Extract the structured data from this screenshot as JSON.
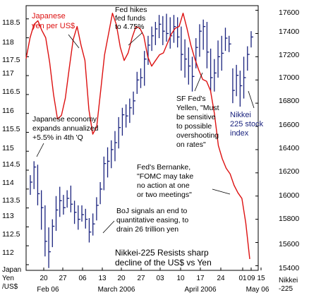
{
  "chart_data": {
    "type": "line",
    "x_ticks": [
      "20",
      "27",
      "06",
      "13",
      "20",
      "27",
      "03",
      "10",
      "17",
      "24",
      "01",
      "09",
      "15"
    ],
    "month_labels": [
      "Feb 06",
      "March 2006",
      "April 2006",
      "May 06"
    ],
    "left_axis": {
      "ylim": [
        111.85,
        118.85
      ],
      "ticks": [
        "118.5",
        "118",
        "117.5",
        "117",
        "116.5",
        "116",
        "115.5",
        "115",
        "114.5",
        "114",
        "113.5",
        "113",
        "112.5",
        "112"
      ],
      "label_line1": "Japan",
      "label_line2": "Yen",
      "label_line3": "/US$"
    },
    "right_axis": {
      "ylim": [
        15360,
        17640
      ],
      "ticks": [
        "17600",
        "17400",
        "17200",
        "17000",
        "16800",
        "16600",
        "16400",
        "16200",
        "16000",
        "15800",
        "15600",
        "15400"
      ],
      "label": "Nikkei",
      "label2": "-225"
    },
    "series": [
      {
        "name": "Japanese yen per US$",
        "axis": "left",
        "color": "#dd1111",
        "x": [
          0,
          1,
          2,
          3,
          4,
          5,
          6,
          7,
          8,
          9,
          10,
          11,
          12,
          13,
          14,
          15,
          16,
          17,
          18,
          19,
          20,
          21,
          22,
          23,
          24,
          25,
          26,
          27,
          28,
          29,
          30,
          31,
          32,
          33,
          34,
          35,
          36,
          37,
          38,
          39,
          40,
          41,
          42,
          43,
          44,
          45,
          46,
          47,
          48,
          49,
          50,
          51,
          52,
          53,
          54,
          55,
          56,
          57
        ],
        "values": [
          117.45,
          118.0,
          118.35,
          118.45,
          118.2,
          118.0,
          117.35,
          116.5,
          115.85,
          115.95,
          116.4,
          117.2,
          117.95,
          118.3,
          117.8,
          117.4,
          116.1,
          115.45,
          115.65,
          116.6,
          117.55,
          118.1,
          118.65,
          118.35,
          117.75,
          117.4,
          117.6,
          118.0,
          118.3,
          118.25,
          118.05,
          117.5,
          117.25,
          117.4,
          117.55,
          117.6,
          117.85,
          118.1,
          118.25,
          118.3,
          118.65,
          118.25,
          117.8,
          117.45,
          117.15,
          116.9,
          116.85,
          116.6,
          116.0,
          115.15,
          114.8,
          114.55,
          114.4,
          114.1,
          113.9,
          113.75,
          113.1,
          112.15
        ]
      },
      {
        "name": "Nikkei 225 stock index",
        "axis": "right",
        "color": "#1a237e",
        "type": "hlc-bars",
        "bars": [
          [
            16180,
            16010,
            16120
          ],
          [
            16300,
            16060,
            16250
          ],
          [
            16270,
            15920,
            16020
          ],
          [
            16050,
            15710,
            15900
          ],
          [
            15920,
            15480,
            15610
          ],
          [
            15730,
            15380,
            15520
          ],
          [
            15800,
            15560,
            15740
          ],
          [
            16000,
            15700,
            15880
          ],
          [
            16080,
            15820,
            15960
          ],
          [
            16010,
            15840,
            15900
          ],
          [
            16050,
            15900,
            15980
          ],
          [
            16090,
            15860,
            15930
          ],
          [
            15960,
            15760,
            15860
          ],
          [
            15920,
            15710,
            15800
          ],
          [
            15920,
            15780,
            15840
          ],
          [
            15890,
            15720,
            15800
          ],
          [
            15810,
            15600,
            15690
          ],
          [
            15850,
            15660,
            15760
          ],
          [
            15990,
            15790,
            15920
          ],
          [
            16120,
            15930,
            16060
          ],
          [
            16340,
            16050,
            16280
          ],
          [
            16420,
            16160,
            16300
          ],
          [
            16480,
            16240,
            16400
          ],
          [
            16560,
            16300,
            16460
          ],
          [
            16680,
            16410,
            16590
          ],
          [
            16760,
            16520,
            16700
          ],
          [
            16790,
            16590,
            16690
          ],
          [
            16840,
            16630,
            16760
          ],
          [
            16900,
            16700,
            16820
          ],
          [
            17070,
            16880,
            17000
          ],
          [
            17100,
            16930,
            17020
          ],
          [
            17250,
            16950,
            17180
          ],
          [
            17380,
            17130,
            17300
          ],
          [
            17460,
            17250,
            17380
          ],
          [
            17500,
            17300,
            17440
          ],
          [
            17560,
            17360,
            17480
          ],
          [
            17550,
            17300,
            17420
          ],
          [
            17570,
            17330,
            17400
          ],
          [
            17540,
            17270,
            17380
          ],
          [
            17560,
            17320,
            17460
          ],
          [
            17540,
            17280,
            17370
          ],
          [
            17460,
            17080,
            17220
          ],
          [
            17350,
            17020,
            17180
          ],
          [
            17280,
            16960,
            17120
          ],
          [
            17200,
            16900,
            17030
          ],
          [
            17360,
            17100,
            17280
          ],
          [
            17480,
            17200,
            17420
          ],
          [
            17520,
            17260,
            17460
          ],
          [
            17500,
            17100,
            17240
          ],
          [
            17270,
            16900,
            17020
          ],
          [
            17180,
            16900,
            17060
          ],
          [
            17340,
            17020,
            17200
          ],
          [
            17380,
            17080,
            17230
          ],
          [
            17450,
            17250,
            17360
          ],
          [
            17380,
            17240,
            17310
          ],
          [
            17100,
            16800,
            16910
          ],
          [
            17130,
            16860,
            17040
          ],
          [
            17080,
            16770,
            16950
          ],
          [
            17200,
            16840,
            17020
          ],
          [
            17290,
            17080,
            17220
          ],
          [
            17420,
            17280,
            17370
          ]
        ]
      }
    ],
    "annotations": {
      "yen_label_line1": "Japanese",
      "yen_label_line2": "yen per US$",
      "fed_line1": "Fed hikes",
      "fed_line2": "fed funds",
      "fed_line3": "to 4.75%",
      "yellen_line1": "SF Fed's",
      "yellen_line2": "Yellen, \"Must",
      "yellen_line3": "be sensitive",
      "yellen_line4": "to possible",
      "yellen_line5": "overshooting",
      "yellen_line6": "on rates\"",
      "japan_line1": "Japanese economy",
      "japan_line2": "expands annualized",
      "japan_line3": "+5.5% in 4th 'Q",
      "nikkei_line1": "Nikkei",
      "nikkei_line2": "225 stock",
      "nikkei_line3": "index",
      "bernanke_line1": "Fed's Bernanke,",
      "bernanke_line2": "\"FOMC may take",
      "bernanke_line3": "no action at one",
      "bernanke_line4": "or two meetings\"",
      "boj_line1": "BoJ signals an end to",
      "boj_line2": "quantitative easing, to",
      "boj_line3": "drain 26 trillion yen",
      "bottom_line1": "Nikkei-225 Resists sharp",
      "bottom_line2": "decline of the US$ vs Yen"
    }
  }
}
